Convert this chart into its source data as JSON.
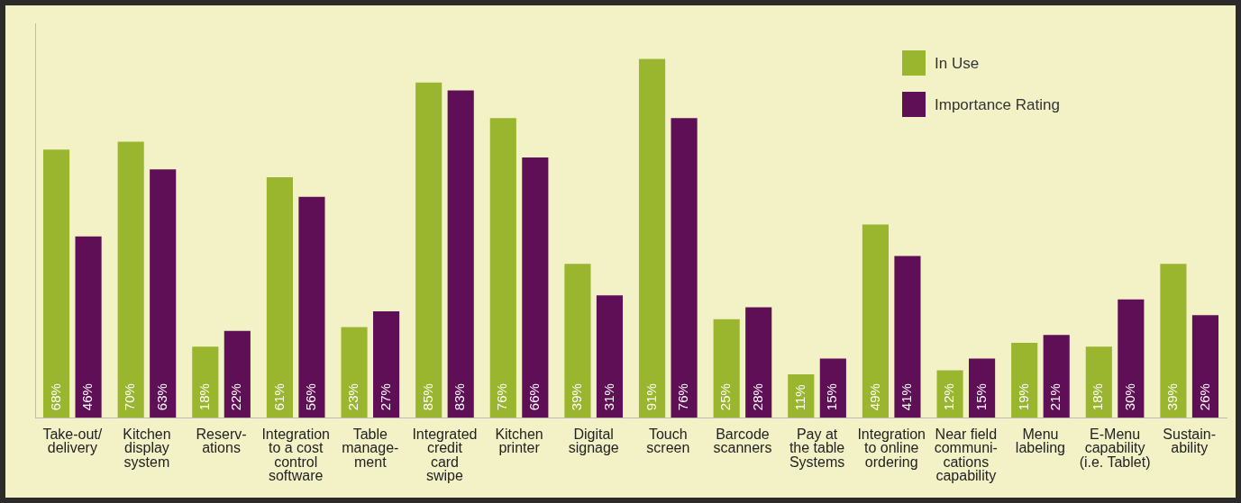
{
  "chart_data": {
    "type": "bar",
    "categories": [
      "Take-out/\ndelivery",
      "Kitchen\ndisplay\nsystem",
      "Reserv-\nations",
      "Integration\nto a cost\ncontrol\nsoftware",
      "Table\nmanage-\nment",
      "Integrated\ncredit\ncard\nswipe",
      "Kitchen\nprinter",
      "Digital\nsignage",
      "Touch\nscreen",
      "Barcode\nscanners",
      "Pay at\nthe table\nSystems",
      "Integration\nto online\nordering",
      "Near field\ncommuni-\ncations\ncapability",
      "Menu\nlabeling",
      "E-Menu\ncapability\n(i.e. Tablet)",
      "Sustain-\nability"
    ],
    "series": [
      {
        "name": "In Use",
        "color": "#9ab52e",
        "values": [
          68,
          70,
          18,
          61,
          23,
          85,
          76,
          39,
          91,
          25,
          11,
          49,
          12,
          19,
          18,
          39
        ],
        "value_labels": [
          "68%",
          "70%",
          "18%",
          "61%",
          "23%",
          "85%",
          "76%",
          "39%",
          "91%",
          "25%",
          "11%",
          "49%",
          "12%",
          "19%",
          "18%",
          "39%"
        ]
      },
      {
        "name": "Importance Rating",
        "color": "#5f0f55",
        "values": [
          46,
          63,
          22,
          56,
          27,
          83,
          66,
          31,
          76,
          28,
          15,
          41,
          15,
          21,
          30,
          26
        ],
        "value_labels": [
          "46%",
          "63%",
          "22%",
          "56%",
          "27%",
          "83%",
          "66%",
          "31%",
          "76%",
          "28%",
          "15%",
          "41%",
          "15%",
          "21%",
          "30%",
          "26%"
        ]
      }
    ],
    "legend": "top right",
    "grid": false,
    "relative": false
  }
}
